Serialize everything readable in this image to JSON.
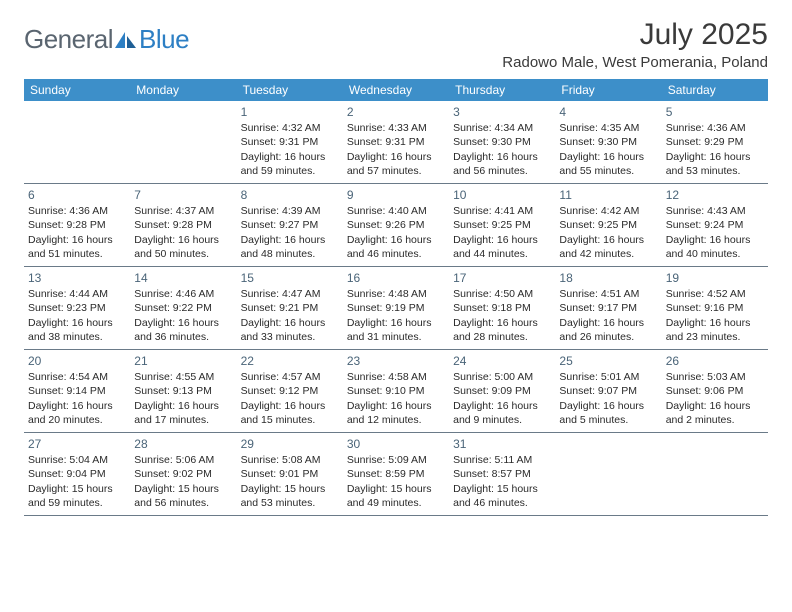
{
  "brand": {
    "general": "General",
    "blue": "Blue"
  },
  "title": "July 2025",
  "location": "Radowo Male, West Pomerania, Poland",
  "colors": {
    "header_bg": "#3d8fc9",
    "header_text": "#ffffff",
    "daynum": "#4a6478",
    "rule": "#6a7a88",
    "logo_gray": "#5a6570",
    "logo_blue": "#2d7fc4",
    "text": "#2a2a2a"
  },
  "dows": [
    "Sunday",
    "Monday",
    "Tuesday",
    "Wednesday",
    "Thursday",
    "Friday",
    "Saturday"
  ],
  "weeks": [
    [
      null,
      null,
      {
        "n": "1",
        "sr": "4:32 AM",
        "ss": "9:31 PM",
        "dl": "16 hours and 59 minutes."
      },
      {
        "n": "2",
        "sr": "4:33 AM",
        "ss": "9:31 PM",
        "dl": "16 hours and 57 minutes."
      },
      {
        "n": "3",
        "sr": "4:34 AM",
        "ss": "9:30 PM",
        "dl": "16 hours and 56 minutes."
      },
      {
        "n": "4",
        "sr": "4:35 AM",
        "ss": "9:30 PM",
        "dl": "16 hours and 55 minutes."
      },
      {
        "n": "5",
        "sr": "4:36 AM",
        "ss": "9:29 PM",
        "dl": "16 hours and 53 minutes."
      }
    ],
    [
      {
        "n": "6",
        "sr": "4:36 AM",
        "ss": "9:28 PM",
        "dl": "16 hours and 51 minutes."
      },
      {
        "n": "7",
        "sr": "4:37 AM",
        "ss": "9:28 PM",
        "dl": "16 hours and 50 minutes."
      },
      {
        "n": "8",
        "sr": "4:39 AM",
        "ss": "9:27 PM",
        "dl": "16 hours and 48 minutes."
      },
      {
        "n": "9",
        "sr": "4:40 AM",
        "ss": "9:26 PM",
        "dl": "16 hours and 46 minutes."
      },
      {
        "n": "10",
        "sr": "4:41 AM",
        "ss": "9:25 PM",
        "dl": "16 hours and 44 minutes."
      },
      {
        "n": "11",
        "sr": "4:42 AM",
        "ss": "9:25 PM",
        "dl": "16 hours and 42 minutes."
      },
      {
        "n": "12",
        "sr": "4:43 AM",
        "ss": "9:24 PM",
        "dl": "16 hours and 40 minutes."
      }
    ],
    [
      {
        "n": "13",
        "sr": "4:44 AM",
        "ss": "9:23 PM",
        "dl": "16 hours and 38 minutes."
      },
      {
        "n": "14",
        "sr": "4:46 AM",
        "ss": "9:22 PM",
        "dl": "16 hours and 36 minutes."
      },
      {
        "n": "15",
        "sr": "4:47 AM",
        "ss": "9:21 PM",
        "dl": "16 hours and 33 minutes."
      },
      {
        "n": "16",
        "sr": "4:48 AM",
        "ss": "9:19 PM",
        "dl": "16 hours and 31 minutes."
      },
      {
        "n": "17",
        "sr": "4:50 AM",
        "ss": "9:18 PM",
        "dl": "16 hours and 28 minutes."
      },
      {
        "n": "18",
        "sr": "4:51 AM",
        "ss": "9:17 PM",
        "dl": "16 hours and 26 minutes."
      },
      {
        "n": "19",
        "sr": "4:52 AM",
        "ss": "9:16 PM",
        "dl": "16 hours and 23 minutes."
      }
    ],
    [
      {
        "n": "20",
        "sr": "4:54 AM",
        "ss": "9:14 PM",
        "dl": "16 hours and 20 minutes."
      },
      {
        "n": "21",
        "sr": "4:55 AM",
        "ss": "9:13 PM",
        "dl": "16 hours and 17 minutes."
      },
      {
        "n": "22",
        "sr": "4:57 AM",
        "ss": "9:12 PM",
        "dl": "16 hours and 15 minutes."
      },
      {
        "n": "23",
        "sr": "4:58 AM",
        "ss": "9:10 PM",
        "dl": "16 hours and 12 minutes."
      },
      {
        "n": "24",
        "sr": "5:00 AM",
        "ss": "9:09 PM",
        "dl": "16 hours and 9 minutes."
      },
      {
        "n": "25",
        "sr": "5:01 AM",
        "ss": "9:07 PM",
        "dl": "16 hours and 5 minutes."
      },
      {
        "n": "26",
        "sr": "5:03 AM",
        "ss": "9:06 PM",
        "dl": "16 hours and 2 minutes."
      }
    ],
    [
      {
        "n": "27",
        "sr": "5:04 AM",
        "ss": "9:04 PM",
        "dl": "15 hours and 59 minutes."
      },
      {
        "n": "28",
        "sr": "5:06 AM",
        "ss": "9:02 PM",
        "dl": "15 hours and 56 minutes."
      },
      {
        "n": "29",
        "sr": "5:08 AM",
        "ss": "9:01 PM",
        "dl": "15 hours and 53 minutes."
      },
      {
        "n": "30",
        "sr": "5:09 AM",
        "ss": "8:59 PM",
        "dl": "15 hours and 49 minutes."
      },
      {
        "n": "31",
        "sr": "5:11 AM",
        "ss": "8:57 PM",
        "dl": "15 hours and 46 minutes."
      },
      null,
      null
    ]
  ],
  "labels": {
    "sunrise": "Sunrise: ",
    "sunset": "Sunset: ",
    "daylight": "Daylight: "
  }
}
